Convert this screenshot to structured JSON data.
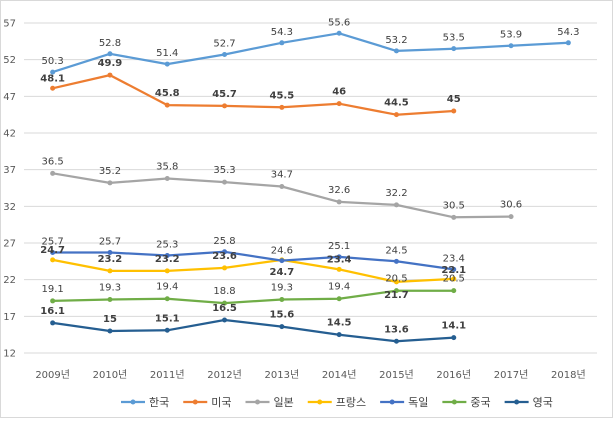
{
  "chart_data": {
    "type": "line",
    "title": "",
    "xlabel": "",
    "ylabel": "",
    "ylim": [
      12,
      57
    ],
    "yticks": [
      12,
      17,
      22,
      27,
      32,
      37,
      42,
      47,
      52,
      57
    ],
    "categories": [
      "2009년",
      "2010년",
      "2011년",
      "2012년",
      "2013년",
      "2014년",
      "2015년",
      "2016년",
      "2017년",
      "2018년"
    ],
    "grid": true,
    "legend": "bottom",
    "series": [
      {
        "name": "한국",
        "color": "#5B9BD5",
        "values": [
          50.3,
          52.8,
          51.4,
          52.7,
          54.3,
          55.6,
          53.2,
          53.5,
          53.9,
          54.3
        ],
        "labels": [
          "50.3",
          "52.8",
          "51.4",
          "52.7",
          "54.3",
          "55.6",
          "53.2",
          "53.5",
          "53.9",
          "54.3"
        ]
      },
      {
        "name": "미국",
        "color": "#ED7D31",
        "values": [
          48.1,
          49.9,
          45.8,
          45.7,
          45.5,
          46,
          44.5,
          45,
          null,
          null
        ],
        "labels": [
          "48.1",
          "49.9",
          "45.8",
          "45.7",
          "45.5",
          "46",
          "44.5",
          "45",
          null,
          null
        ]
      },
      {
        "name": "일본",
        "color": "#A5A5A5",
        "values": [
          36.5,
          35.2,
          35.8,
          35.3,
          34.7,
          32.6,
          32.2,
          30.5,
          30.6,
          null
        ],
        "labels": [
          "36.5",
          "35.2",
          "35.8",
          "35.3",
          "34.7",
          "32.6",
          "32.2",
          "30.5",
          "30.6",
          null
        ]
      },
      {
        "name": "프랑스",
        "color": "#FFC000",
        "values": [
          24.7,
          23.2,
          23.2,
          23.6,
          24.7,
          23.4,
          21.7,
          22.1,
          null,
          null
        ],
        "labels": [
          "24.7",
          "23.2",
          "23.2",
          "23.6",
          "24.7",
          "23.4",
          "21.7",
          "22.1",
          null,
          null
        ]
      },
      {
        "name": "독일",
        "color": "#4472C4",
        "values": [
          25.7,
          25.7,
          25.3,
          25.8,
          24.6,
          25.1,
          24.5,
          23.4,
          null,
          null
        ],
        "labels": [
          "25.7",
          "25.7",
          "25.3",
          "25.8",
          "24.6",
          "25.1",
          "24.5",
          "23.4",
          null,
          null
        ]
      },
      {
        "name": "중국",
        "color": "#70AD47",
        "values": [
          19.1,
          19.3,
          19.4,
          18.8,
          19.3,
          19.4,
          20.5,
          20.5,
          null,
          null
        ],
        "labels": [
          "19.1",
          "19.3",
          "19.4",
          "18.8",
          "19.3",
          "19.4",
          "20.5",
          "20.5",
          null,
          null
        ]
      },
      {
        "name": "영국",
        "color": "#255E91",
        "values": [
          16.1,
          15,
          15.1,
          16.5,
          15.6,
          14.5,
          13.6,
          14.1,
          null,
          null
        ],
        "labels": [
          "16.1",
          "15",
          "15.1",
          "16.5",
          "15.6",
          "14.5",
          "13.6",
          "14.1",
          null,
          null
        ]
      }
    ]
  }
}
